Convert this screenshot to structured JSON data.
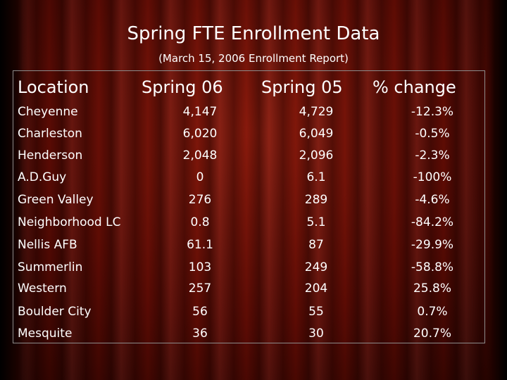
{
  "slide": {
    "title": "Spring FTE Enrollment Data",
    "subtitle": "(March 15, 2006 Enrollment Report)"
  },
  "table": {
    "headers": [
      "Location",
      "Spring 06",
      "Spring 05",
      "% change"
    ],
    "rows": [
      [
        "Cheyenne",
        "4,147",
        "4,729",
        "-12.3%"
      ],
      [
        "Charleston",
        "6,020",
        "6,049",
        "-0.5%"
      ],
      [
        "Henderson",
        "2,048",
        "2,096",
        "-2.3%"
      ],
      [
        "A.D.Guy",
        "0",
        "6.1",
        "-100%"
      ],
      [
        "Green Valley",
        "276",
        "289",
        "-4.6%"
      ],
      [
        "Neighborhood LC",
        "0.8",
        "5.1",
        "-84.2%"
      ],
      [
        "Nellis AFB",
        "61.1",
        "87",
        "-29.9%"
      ],
      [
        "Summerlin",
        "103",
        "249",
        "-58.8%"
      ],
      [
        "Western",
        "257",
        "204",
        "25.8%"
      ],
      [
        "Boulder City",
        "56",
        "55",
        "0.7%"
      ],
      [
        "Mesquite",
        "36",
        "30",
        "20.7%"
      ]
    ]
  },
  "colors": {
    "background": "#5c0b04",
    "text": "#ffffff",
    "border": "#8c8c8c"
  }
}
